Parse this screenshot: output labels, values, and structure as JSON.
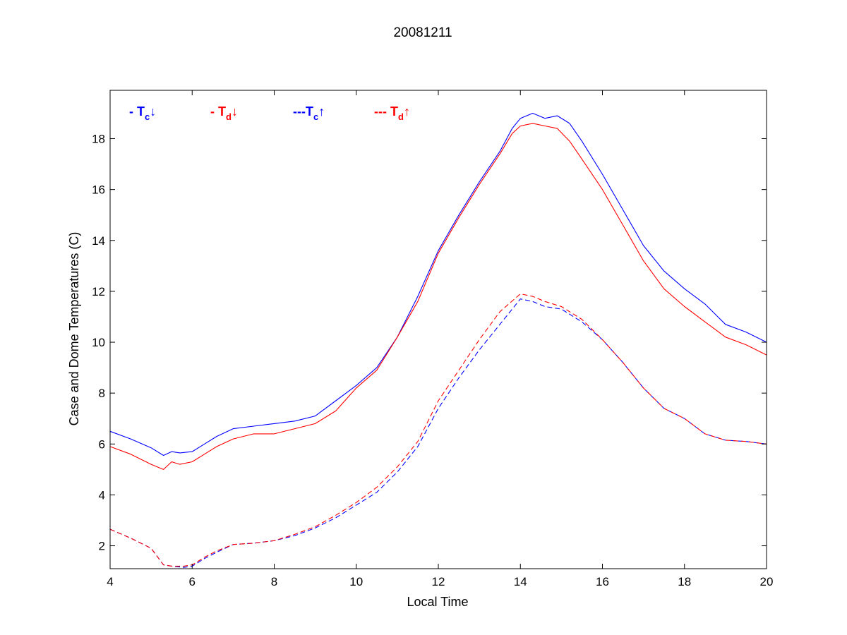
{
  "chart_data": {
    "type": "line",
    "title": "20081211",
    "xlabel": "Local Time",
    "ylabel": "Case and Dome Temperatures (C)",
    "xlim": [
      4,
      20
    ],
    "ylim": [
      1.1,
      19.9
    ],
    "xticks": [
      4,
      6,
      8,
      10,
      12,
      14,
      16,
      18,
      20
    ],
    "yticks": [
      2,
      4,
      6,
      8,
      10,
      12,
      14,
      16,
      18
    ],
    "grid": false,
    "legend_position": "top-left, inside plot",
    "series": [
      {
        "name": "- Tc↓",
        "legend": {
          "prefix": "- T",
          "sub": "c",
          "arrow": "↓"
        },
        "color": "#0000ff",
        "style": "solid",
        "x": [
          4.0,
          4.5,
          5.0,
          5.3,
          5.5,
          5.7,
          6.0,
          6.3,
          6.6,
          7.0,
          7.5,
          8.0,
          8.5,
          9.0,
          9.5,
          10.0,
          10.5,
          11.0,
          11.5,
          12.0,
          12.5,
          13.0,
          13.5,
          13.8,
          14.0,
          14.3,
          14.6,
          14.9,
          15.2,
          15.5,
          16.0,
          16.5,
          17.0,
          17.5,
          18.0,
          18.5,
          19.0,
          19.5,
          20.0
        ],
        "y": [
          6.5,
          6.2,
          5.85,
          5.55,
          5.7,
          5.65,
          5.7,
          6.0,
          6.3,
          6.6,
          6.7,
          6.8,
          6.9,
          7.1,
          7.7,
          8.3,
          9.0,
          10.2,
          11.8,
          13.6,
          15.0,
          16.3,
          17.5,
          18.4,
          18.8,
          19.0,
          18.8,
          18.9,
          18.6,
          17.9,
          16.6,
          15.2,
          13.8,
          12.8,
          12.1,
          11.5,
          10.7,
          10.4,
          10.0
        ]
      },
      {
        "name": "- Td↓",
        "legend": {
          "prefix": "- T",
          "sub": "d",
          "arrow": "↓"
        },
        "color": "#ff0000",
        "style": "solid",
        "x": [
          4.0,
          4.5,
          5.0,
          5.3,
          5.5,
          5.7,
          6.0,
          6.3,
          6.6,
          7.0,
          7.5,
          8.0,
          8.5,
          9.0,
          9.5,
          10.0,
          10.5,
          11.0,
          11.5,
          12.0,
          12.5,
          13.0,
          13.5,
          13.8,
          14.0,
          14.3,
          14.6,
          14.9,
          15.2,
          15.5,
          16.0,
          16.5,
          17.0,
          17.5,
          18.0,
          18.5,
          19.0,
          19.5,
          20.0
        ],
        "y": [
          5.9,
          5.6,
          5.2,
          5.0,
          5.3,
          5.2,
          5.3,
          5.6,
          5.9,
          6.2,
          6.4,
          6.4,
          6.6,
          6.8,
          7.3,
          8.2,
          8.9,
          10.2,
          11.6,
          13.5,
          14.9,
          16.2,
          17.4,
          18.2,
          18.5,
          18.6,
          18.5,
          18.4,
          17.9,
          17.2,
          16.0,
          14.6,
          13.2,
          12.1,
          11.4,
          10.8,
          10.2,
          9.9,
          9.5
        ]
      },
      {
        "name": "---Tc↑",
        "legend": {
          "prefix": "---T",
          "sub": "c",
          "arrow": "↑"
        },
        "color": "#0000ff",
        "style": "dashed",
        "x": [
          4.0,
          4.5,
          5.0,
          5.3,
          5.5,
          5.8,
          6.0,
          6.3,
          6.6,
          7.0,
          7.5,
          8.0,
          8.5,
          9.0,
          9.5,
          10.0,
          10.5,
          11.0,
          11.5,
          12.0,
          12.5,
          13.0,
          13.5,
          14.0,
          14.3,
          14.6,
          15.0,
          15.5,
          16.0,
          16.5,
          17.0,
          17.5,
          18.0,
          18.5,
          19.0,
          19.5,
          20.0
        ],
        "y": [
          2.65,
          2.3,
          1.9,
          1.25,
          1.2,
          1.15,
          1.2,
          1.5,
          1.75,
          2.05,
          2.1,
          2.2,
          2.4,
          2.7,
          3.1,
          3.6,
          4.1,
          4.9,
          5.9,
          7.4,
          8.6,
          9.7,
          10.7,
          11.7,
          11.6,
          11.4,
          11.3,
          10.8,
          10.1,
          9.2,
          8.2,
          7.4,
          7.0,
          6.4,
          6.15,
          6.1,
          6.0
        ]
      },
      {
        "name": "--- Td↑",
        "legend": {
          "prefix": "--- T",
          "sub": "d",
          "arrow": "↑"
        },
        "color": "#ff0000",
        "style": "dashed",
        "x": [
          4.0,
          4.5,
          5.0,
          5.3,
          5.5,
          5.8,
          6.0,
          6.3,
          6.6,
          7.0,
          7.5,
          8.0,
          8.5,
          9.0,
          9.5,
          10.0,
          10.5,
          11.0,
          11.5,
          12.0,
          12.5,
          13.0,
          13.5,
          14.0,
          14.3,
          14.6,
          15.0,
          15.5,
          16.0,
          16.5,
          17.0,
          17.5,
          18.0,
          18.5,
          19.0,
          19.5,
          20.0
        ],
        "y": [
          2.65,
          2.3,
          1.9,
          1.25,
          1.2,
          1.2,
          1.25,
          1.55,
          1.8,
          2.05,
          2.1,
          2.2,
          2.45,
          2.75,
          3.2,
          3.7,
          4.3,
          5.1,
          6.1,
          7.7,
          8.9,
          10.1,
          11.2,
          11.9,
          11.8,
          11.6,
          11.4,
          10.9,
          10.1,
          9.2,
          8.2,
          7.4,
          7.0,
          6.4,
          6.15,
          6.1,
          6.0
        ]
      }
    ]
  }
}
